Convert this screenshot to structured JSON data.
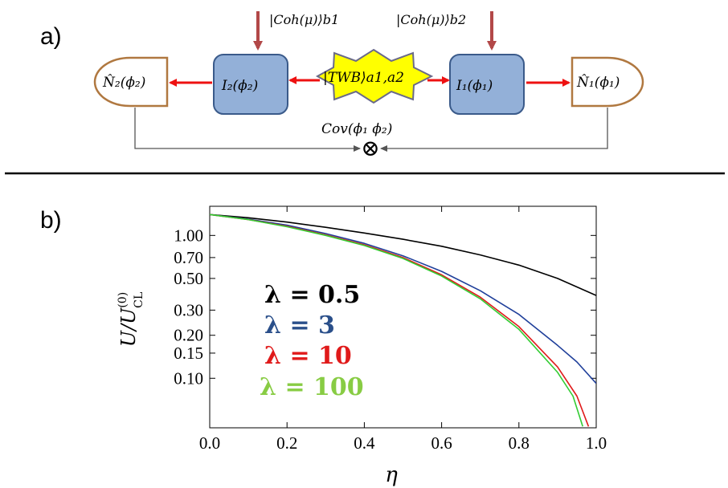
{
  "panel_a": {
    "label": "a)",
    "left_detector": "N̂₂(ϕ₂)",
    "left_interferometer": "I₂(ϕ₂)",
    "source": "|TWB⟩a1,a2",
    "right_interferometer": "I₁(ϕ₁)",
    "right_detector": "N̂₁(ϕ₁)",
    "coherent_left": "|Coh(μ)⟩b1",
    "coherent_right": "|Coh(μ)⟩b2",
    "covariance": "Cov(ϕ₁ ϕ₂)",
    "correlator_symbol": "⊗",
    "colors": {
      "box_fill": "#93b0d8",
      "box_stroke": "#3a5a8a",
      "source_fill": "#ffff00",
      "source_stroke": "#6a6a8a",
      "detector_stroke": "#b07840",
      "arrow_red": "#ee1111",
      "arrow_dark_red": "#b24848"
    }
  },
  "panel_b": {
    "label": "b)",
    "chart_data": {
      "type": "line",
      "xlabel": "η",
      "ylabel": "U/U",
      "ylabel_sup": "(0)",
      "ylabel_sub": "CL",
      "xlim": [
        0.0,
        1.0
      ],
      "ylim": [
        0.045,
        1.6
      ],
      "yscale": "log",
      "xticks": [
        0.0,
        0.2,
        0.4,
        0.6,
        0.8,
        1.0
      ],
      "xtick_labels": [
        "0.0",
        "0.2",
        "0.4",
        "0.6",
        "0.8",
        "1.0"
      ],
      "yticks": [
        0.1,
        0.15,
        0.2,
        0.3,
        0.5,
        0.7,
        1.0
      ],
      "ytick_labels": [
        "0.10",
        "0.15",
        "0.20",
        "0.30",
        "0.50",
        "0.70",
        "1.00"
      ],
      "grid": false,
      "series": [
        {
          "name": "λ = 0.5",
          "color": "#000000",
          "x": [
            0.0,
            0.1,
            0.2,
            0.3,
            0.4,
            0.5,
            0.6,
            0.7,
            0.8,
            0.9,
            1.0
          ],
          "y": [
            1.4,
            1.33,
            1.24,
            1.14,
            1.04,
            0.94,
            0.84,
            0.73,
            0.62,
            0.5,
            0.38
          ]
        },
        {
          "name": "λ = 3",
          "color": "#1f3f9a",
          "x": [
            0.0,
            0.1,
            0.2,
            0.3,
            0.4,
            0.5,
            0.6,
            0.7,
            0.8,
            0.9,
            0.95,
            1.0
          ],
          "y": [
            1.4,
            1.3,
            1.18,
            1.03,
            0.88,
            0.72,
            0.56,
            0.41,
            0.28,
            0.17,
            0.13,
            0.092
          ]
        },
        {
          "name": "λ = 10",
          "color": "#e01a1a",
          "x": [
            0.0,
            0.1,
            0.2,
            0.3,
            0.4,
            0.5,
            0.6,
            0.7,
            0.8,
            0.9,
            0.95,
            0.98
          ],
          "y": [
            1.4,
            1.29,
            1.16,
            1.01,
            0.86,
            0.7,
            0.53,
            0.37,
            0.23,
            0.12,
            0.075,
            0.046
          ]
        },
        {
          "name": "λ = 100",
          "color": "#33cc33",
          "x": [
            0.0,
            0.1,
            0.2,
            0.3,
            0.4,
            0.5,
            0.6,
            0.7,
            0.8,
            0.9,
            0.94,
            0.965
          ],
          "y": [
            1.4,
            1.29,
            1.15,
            1.0,
            0.85,
            0.69,
            0.52,
            0.36,
            0.22,
            0.11,
            0.075,
            0.046
          ]
        }
      ],
      "legend": {
        "placement": "left-center",
        "entries": [
          {
            "text": "λ = 0.5",
            "color": "#000000"
          },
          {
            "text": "λ = 3",
            "color": "#2a4f8a"
          },
          {
            "text": "λ = 10",
            "color": "#e01a1a"
          },
          {
            "text": "λ = 100",
            "color": "#88cc44"
          }
        ]
      }
    }
  }
}
